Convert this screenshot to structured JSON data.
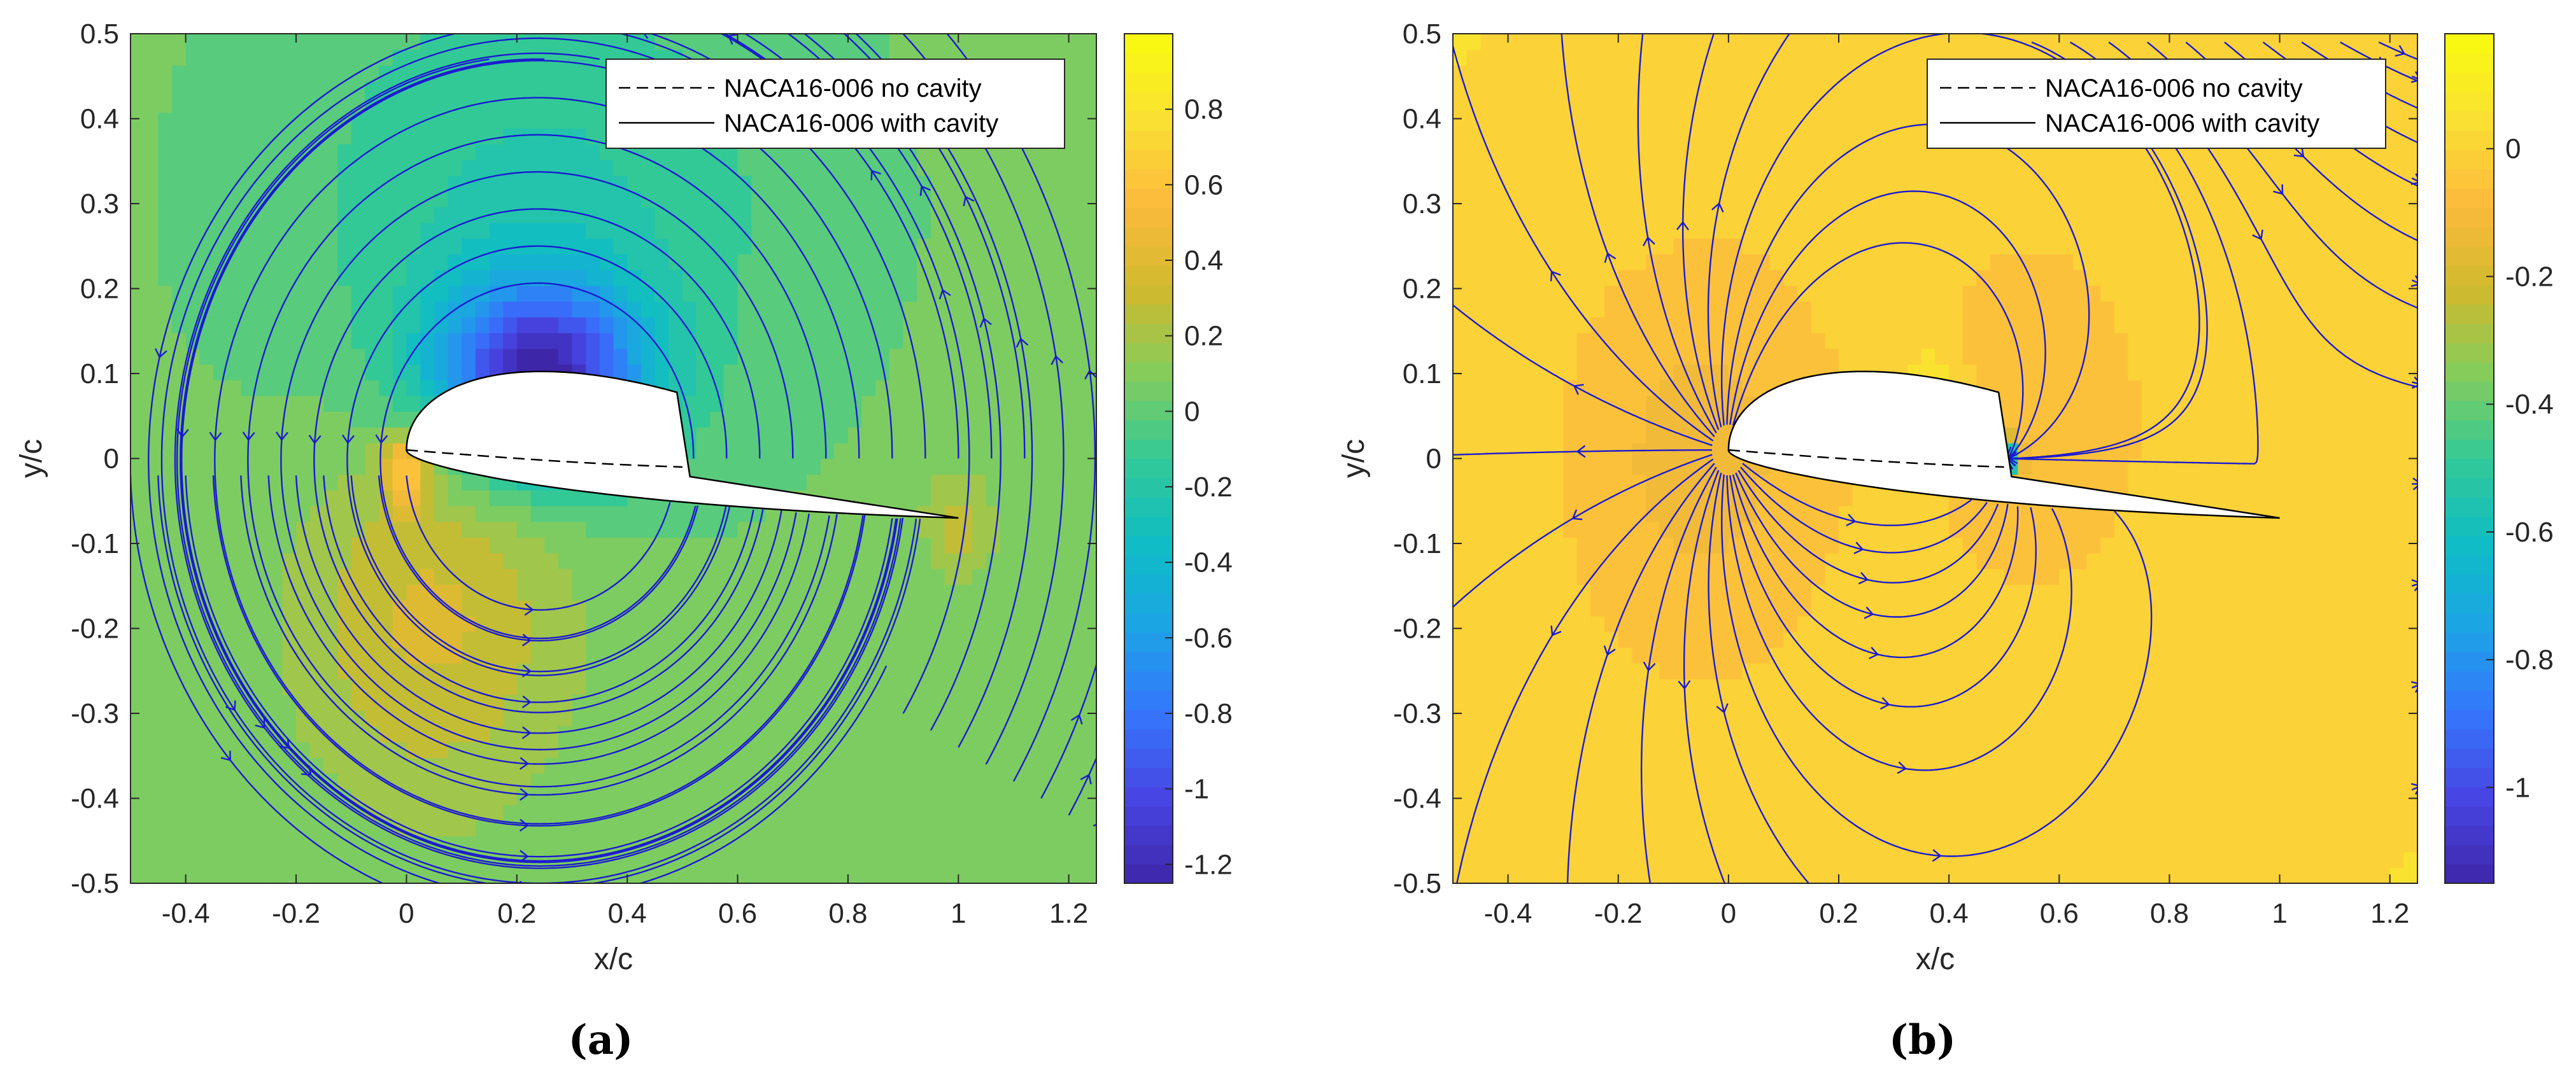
{
  "chart_data": [
    {
      "type": "heatmap",
      "panel_label": "(a)",
      "xlabel": "x/c",
      "ylabel": "y/c",
      "xlim": [
        -0.5,
        1.25
      ],
      "ylim": [
        -0.5,
        0.5
      ],
      "xticks": [
        "-0.4",
        "-0.2",
        "0",
        "0.2",
        "0.4",
        "0.6",
        "0.8",
        "1",
        "1.2"
      ],
      "yticks": [
        "0.5",
        "0.4",
        "0.3",
        "0.2",
        "0.1",
        "0",
        "-0.1",
        "-0.2",
        "-0.3",
        "-0.4",
        "-0.5"
      ],
      "colorbar": {
        "range": [
          -1.25,
          1.0
        ],
        "ticks": [
          "0.8",
          "0.6",
          "0.4",
          "0.2",
          "0",
          "-0.2",
          "-0.4",
          "-0.6",
          "-0.8",
          "-1",
          "-1.2"
        ]
      },
      "legend": {
        "position": "top-right",
        "entries": [
          "NACA16-006 no cavity",
          "NACA16-006 with cavity"
        ]
      },
      "field_pattern": "vortex"
    },
    {
      "type": "heatmap",
      "panel_label": "(b)",
      "xlabel": "x/c",
      "ylabel": "y/c",
      "xlim": [
        -0.5,
        1.25
      ],
      "ylim": [
        -0.5,
        0.5
      ],
      "xticks": [
        "-0.4",
        "-0.2",
        "0",
        "0.2",
        "0.4",
        "0.6",
        "0.8",
        "1",
        "1.2"
      ],
      "yticks": [
        "0.5",
        "0.4",
        "0.3",
        "0.2",
        "0.1",
        "0",
        "-0.1",
        "-0.2",
        "-0.3",
        "-0.4",
        "-0.5"
      ],
      "colorbar": {
        "range": [
          -1.15,
          0.18
        ],
        "ticks": [
          "0",
          "-0.2",
          "-0.4",
          "-0.6",
          "-0.8",
          "-1"
        ]
      },
      "legend": {
        "position": "top-right",
        "entries": [
          "NACA16-006 no cavity",
          "NACA16-006 with cavity"
        ]
      },
      "field_pattern": "source-sink"
    }
  ],
  "colors": {
    "streamline": "#1a1ad0",
    "colormap": "parula"
  }
}
